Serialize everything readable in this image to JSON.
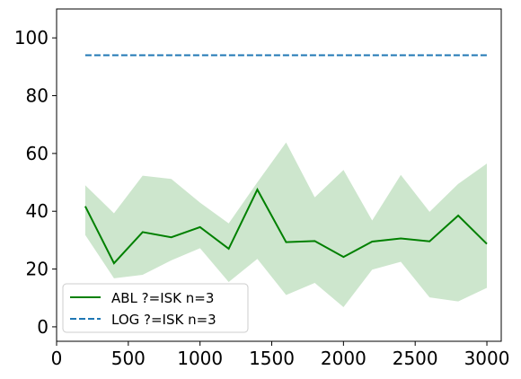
{
  "chart_data": {
    "type": "line",
    "title": "",
    "xlabel": "",
    "ylabel": "",
    "xlim": [
      0,
      3100
    ],
    "ylim": [
      -5,
      110
    ],
    "x_ticks": [
      0,
      500,
      1000,
      1500,
      2000,
      2500,
      3000
    ],
    "y_ticks": [
      0,
      20,
      40,
      60,
      80,
      100
    ],
    "grid": false,
    "legend_position": "bottom-left",
    "series": [
      {
        "name": "ABL ?=ISK n=3",
        "color": "#008000",
        "style": "solid",
        "x": [
          200,
          400,
          600,
          800,
          1000,
          1200,
          1400,
          1600,
          1800,
          2000,
          2200,
          2400,
          2600,
          2800,
          3000
        ],
        "values": [
          41.7,
          22.0,
          32.8,
          31.0,
          34.5,
          27.0,
          47.5,
          29.3,
          29.7,
          24.2,
          29.5,
          30.6,
          29.6,
          38.5,
          28.7
        ],
        "band_upper": [
          49.0,
          39.3,
          52.3,
          51.2,
          43.0,
          35.8,
          50.0,
          63.8,
          44.8,
          54.3,
          36.8,
          52.6,
          39.8,
          49.5,
          56.5
        ],
        "band_lower": [
          31.8,
          16.8,
          18.0,
          23.0,
          27.2,
          15.5,
          23.5,
          11.0,
          15.2,
          6.8,
          19.8,
          22.5,
          10.2,
          8.8,
          13.5
        ],
        "band_color": "#cde6cd"
      },
      {
        "name": "LOG ?=ISK n=3",
        "color": "#1f77b4",
        "style": "dashed",
        "x": [
          200,
          3000
        ],
        "values": [
          94,
          94
        ]
      }
    ]
  }
}
